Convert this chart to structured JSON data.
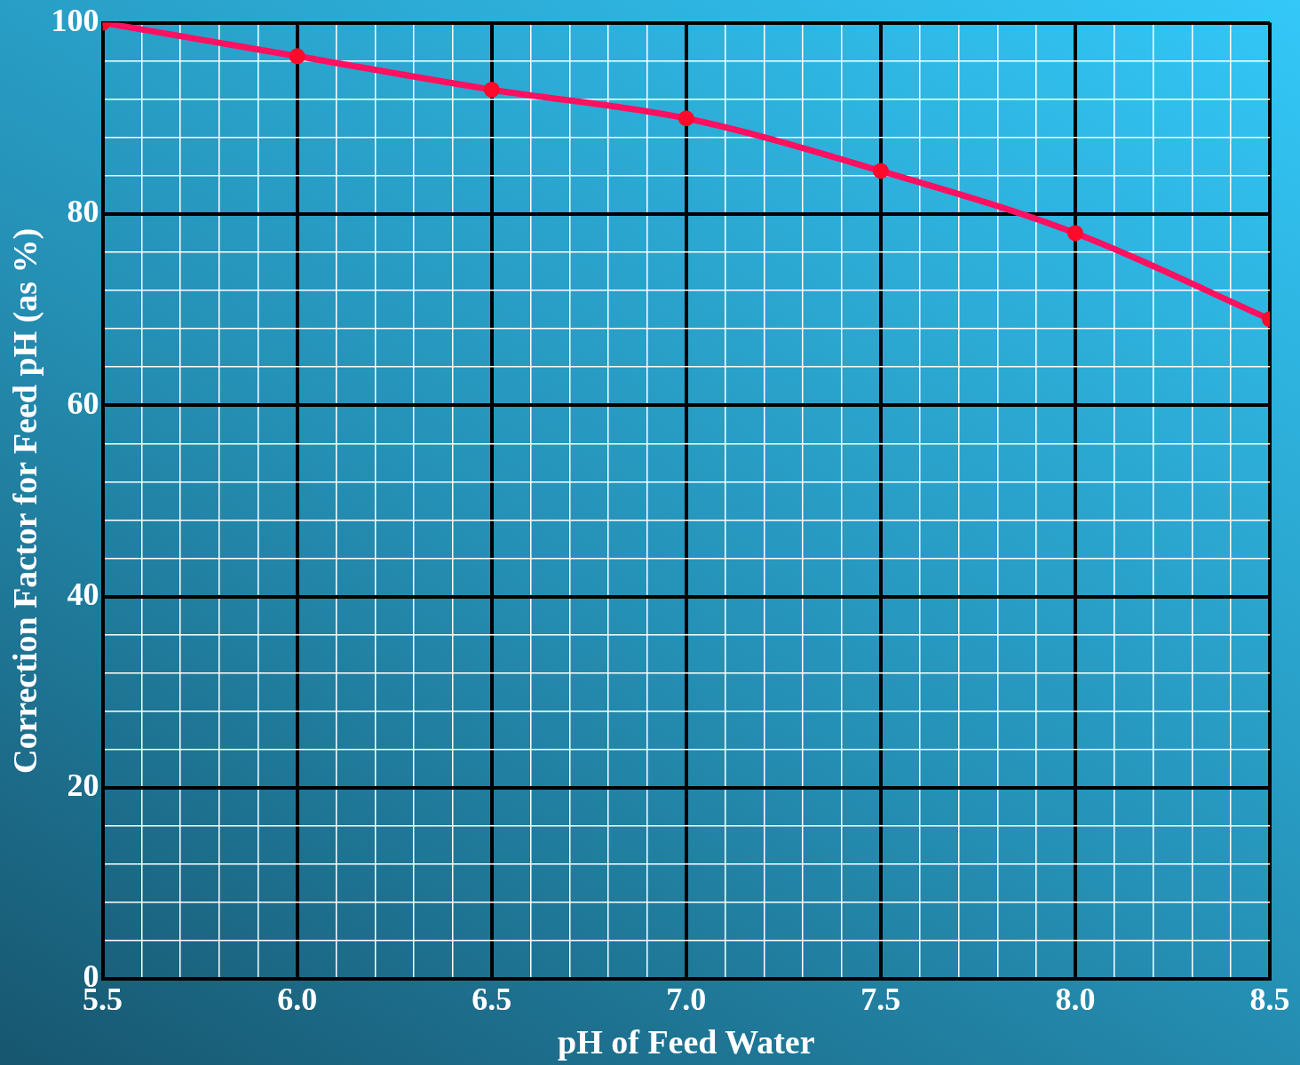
{
  "chart_data": {
    "type": "line",
    "xlabel": "pH of Feed Water",
    "ylabel": "Correction Factor for Feed pH (as %)",
    "x": [
      5.5,
      6.0,
      6.5,
      7.0,
      7.5,
      8.0,
      8.5
    ],
    "series": [
      {
        "color": "#ff1060",
        "values": [
          100,
          96.5,
          93,
          90,
          84.5,
          78,
          69
        ]
      }
    ],
    "marker": "circle",
    "line_style": "solid",
    "grid": true,
    "legend": false,
    "xlim": [
      5.5,
      8.5
    ],
    "ylim": [
      0,
      100
    ],
    "xticks": [
      {
        "value": 5.5,
        "label": "5.5"
      },
      {
        "value": 5.6,
        "label": null
      },
      {
        "value": 5.7,
        "label": null
      },
      {
        "value": 5.8,
        "label": null
      },
      {
        "value": 5.9,
        "label": null
      },
      {
        "value": 6.0,
        "label": "6.0"
      },
      {
        "value": 6.1,
        "label": null
      },
      {
        "value": 6.2,
        "label": null
      },
      {
        "value": 6.3,
        "label": null
      },
      {
        "value": 6.4,
        "label": null
      },
      {
        "value": 6.5,
        "label": "6.5"
      },
      {
        "value": 6.6,
        "label": null
      },
      {
        "value": 6.7,
        "label": null
      },
      {
        "value": 6.8,
        "label": null
      },
      {
        "value": 6.9,
        "label": null
      },
      {
        "value": 7.0,
        "label": "7.0"
      },
      {
        "value": 7.1,
        "label": null
      },
      {
        "value": 7.2,
        "label": null
      },
      {
        "value": 7.3,
        "label": null
      },
      {
        "value": 7.4,
        "label": null
      },
      {
        "value": 7.5,
        "label": "7.5"
      },
      {
        "value": 7.6,
        "label": null
      },
      {
        "value": 7.7,
        "label": null
      },
      {
        "value": 7.8,
        "label": null
      },
      {
        "value": 7.9,
        "label": null
      },
      {
        "value": 8.0,
        "label": "8.0"
      },
      {
        "value": 8.1,
        "label": null
      },
      {
        "value": 8.2,
        "label": null
      },
      {
        "value": 8.3,
        "label": null
      },
      {
        "value": 8.4,
        "label": null
      },
      {
        "value": 8.5,
        "label": "8.5"
      }
    ],
    "yticks": [
      0,
      {
        "value": 4,
        "label": null
      },
      {
        "value": 8,
        "label": null
      },
      {
        "value": 12,
        "label": null
      },
      {
        "value": 16,
        "label": null
      },
      20,
      {
        "value": 24,
        "label": null
      },
      {
        "value": 28,
        "label": null
      },
      {
        "value": 32,
        "label": null
      },
      {
        "value": 36,
        "label": null
      },
      40,
      {
        "value": 44,
        "label": null
      },
      {
        "value": 48,
        "label": null
      },
      {
        "value": 52,
        "label": null
      },
      {
        "value": 56,
        "label": null
      },
      60,
      {
        "value": 64,
        "label": null
      },
      {
        "value": 68,
        "label": null
      },
      {
        "value": 72,
        "label": null
      },
      {
        "value": 76,
        "label": null
      },
      80,
      {
        "value": 84,
        "label": null
      },
      {
        "value": 88,
        "label": null
      },
      {
        "value": 92,
        "label": null
      },
      {
        "value": 96,
        "label": null
      },
      100
    ]
  }
}
